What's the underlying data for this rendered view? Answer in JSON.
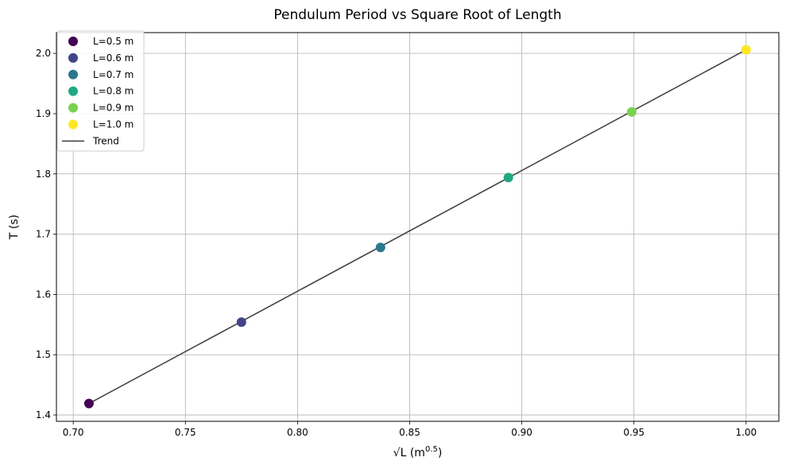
{
  "chart_data": {
    "type": "scatter",
    "title": "Pendulum Period vs Square Root of Length",
    "xlabel_base": "√L (m",
    "xlabel_exp": "0.5",
    "xlabel_close": ")",
    "ylabel": "T (s)",
    "xlim": [
      0.6925,
      1.0146
    ],
    "ylim": [
      1.3895,
      2.0345
    ],
    "xticks": [
      0.7,
      0.75,
      0.8,
      0.85,
      0.9,
      0.95,
      1.0
    ],
    "xtick_labels": [
      "0.70",
      "0.75",
      "0.80",
      "0.85",
      "0.90",
      "0.95",
      "1.00"
    ],
    "yticks": [
      1.4,
      1.5,
      1.6,
      1.7,
      1.8,
      1.9,
      2.0
    ],
    "ytick_labels": [
      "1.4",
      "1.5",
      "1.6",
      "1.7",
      "1.8",
      "1.9",
      "2.0"
    ],
    "grid": true,
    "legend_position": "top-left",
    "series": [
      {
        "name": "L=0.5 m",
        "x": 0.707,
        "y": 1.419,
        "color": "#440154"
      },
      {
        "name": "L=0.6 m",
        "x": 0.775,
        "y": 1.554,
        "color": "#414487"
      },
      {
        "name": "L=0.7 m",
        "x": 0.837,
        "y": 1.678,
        "color": "#2a788e"
      },
      {
        "name": "L=0.8 m",
        "x": 0.894,
        "y": 1.794,
        "color": "#22a884"
      },
      {
        "name": "L=0.9 m",
        "x": 0.949,
        "y": 1.903,
        "color": "#7ad151"
      },
      {
        "name": "L=1.0 m",
        "x": 1.0,
        "y": 2.006,
        "color": "#fde725"
      }
    ],
    "trend": {
      "name": "Trend",
      "color": "#444444",
      "x": [
        0.707,
        1.0
      ],
      "y": [
        1.419,
        2.006
      ]
    }
  }
}
